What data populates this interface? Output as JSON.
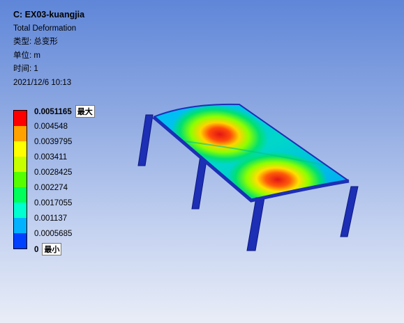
{
  "info": {
    "title": "C: EX03-kuangjia",
    "result": "Total Deformation",
    "type": "类型: 总变形",
    "unit": "单位: m",
    "time": "时间: 1",
    "date": "2021/12/6 10:13"
  },
  "legend": {
    "max_tag": "最大",
    "min_tag": "最小",
    "ticks": [
      {
        "value": "0.0051165",
        "color": "#ff0000"
      },
      {
        "value": "0.004548",
        "color": "#ffa200"
      },
      {
        "value": "0.0039795",
        "color": "#ffff00"
      },
      {
        "value": "0.003411",
        "color": "#c8ff00"
      },
      {
        "value": "0.0028425",
        "color": "#56ff00"
      },
      {
        "value": "0.002274",
        "color": "#00ff5a"
      },
      {
        "value": "0.0017055",
        "color": "#00ffd0"
      },
      {
        "value": "0.001137",
        "color": "#00b2ff"
      },
      {
        "value": "0.0005685",
        "color": "#0040ff"
      },
      {
        "value": "0"
      }
    ]
  },
  "model": {
    "frame_color": "#1d2fb5",
    "hotspot_color": "#e01515"
  }
}
